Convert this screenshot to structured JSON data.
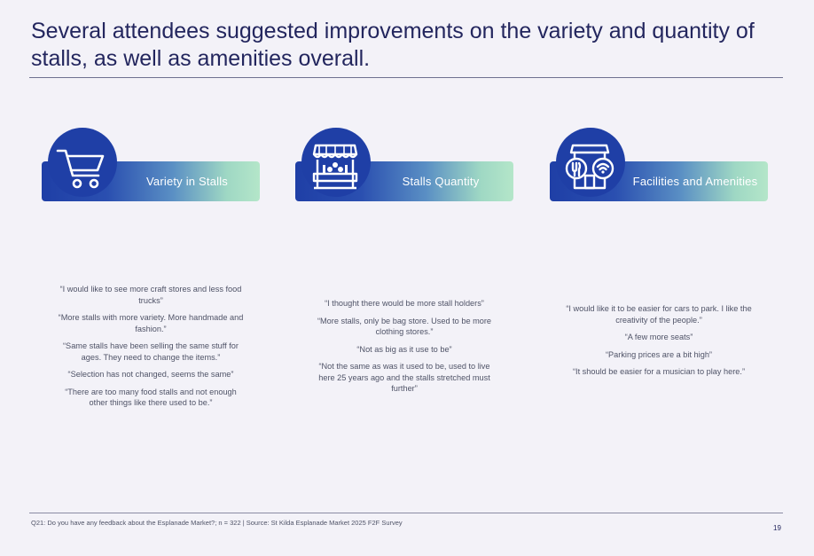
{
  "title": "Several attendees suggested improvements on the variety and quantity of stalls, as well as amenities overall.",
  "cards": [
    {
      "label": "Variety in Stalls",
      "icon": "shopping-cart-icon",
      "quotes": [
        "“I would like to see more craft stores and less food trucks”",
        "“More stalls with more variety. More handmade and fashion.”",
        "“Same stalls have been selling the same stuff for ages. They need to change the items.”",
        "“Selection has not changed, seems the same”",
        "“There are too many food stalls and not enough other things like there used to be.”"
      ]
    },
    {
      "label": "Stalls Quantity",
      "icon": "market-stall-icon",
      "quotes": [
        "“I thought there would be more stall holders”",
        "“More stalls, only be bag store. Used to be more clothing stores.”",
        "“Not as big as it use to be”",
        "“Not the same as was it used to be, used to live here 25 years ago and the stalls stretched must further”"
      ]
    },
    {
      "label": "Facilities and Amenities",
      "icon": "facilities-building-icon",
      "quotes": [
        "“I would like it to be easier for cars to park. I like the creativity of the people.”",
        "“A few more seats”",
        "“Parking prices are a bit high”",
        "“It should be easier for a musician to play here.”"
      ]
    }
  ],
  "footer": "Q21: Do you have any feedback about the Esplanade Market?; n = 322 | Source: St Kilda Esplanade Market 2025 F2F Survey",
  "page_number": "19",
  "colors": {
    "navy": "#23265e",
    "brand_blue": "#1f3fa6",
    "mint": "#b4e6c9",
    "background": "#f3f2f8"
  }
}
